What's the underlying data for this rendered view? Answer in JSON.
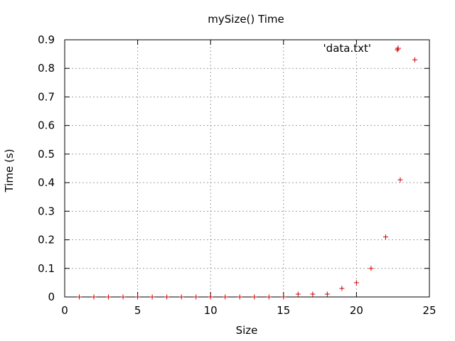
{
  "chart_data": {
    "type": "scatter",
    "title": "mySize() Time",
    "xlabel": "Size",
    "ylabel": "Time (s)",
    "xlim": [
      0,
      25
    ],
    "ylim": [
      0,
      0.9
    ],
    "grid": true,
    "legend_position": "top-right",
    "x_ticks": [
      "0",
      "5",
      "10",
      "15",
      "20",
      "25"
    ],
    "y_ticks": [
      "0",
      "0.1",
      "0.2",
      "0.3",
      "0.4",
      "0.5",
      "0.6",
      "0.7",
      "0.8",
      "0.9"
    ],
    "series": [
      {
        "name": "'data.txt'",
        "color": "#cc0000",
        "marker": "plus",
        "x": [
          1,
          2,
          3,
          4,
          5,
          6,
          7,
          8,
          9,
          10,
          11,
          12,
          13,
          14,
          15,
          16,
          17,
          18,
          19,
          20,
          21,
          22,
          22.8,
          23,
          24
        ],
        "y": [
          0,
          0,
          0,
          0,
          0,
          0,
          0,
          0,
          0,
          0,
          0,
          0,
          0,
          0,
          0,
          0.01,
          0.01,
          0.01,
          0.03,
          0.05,
          0.1,
          0.21,
          0.865,
          0.41,
          0.83
        ]
      }
    ]
  }
}
